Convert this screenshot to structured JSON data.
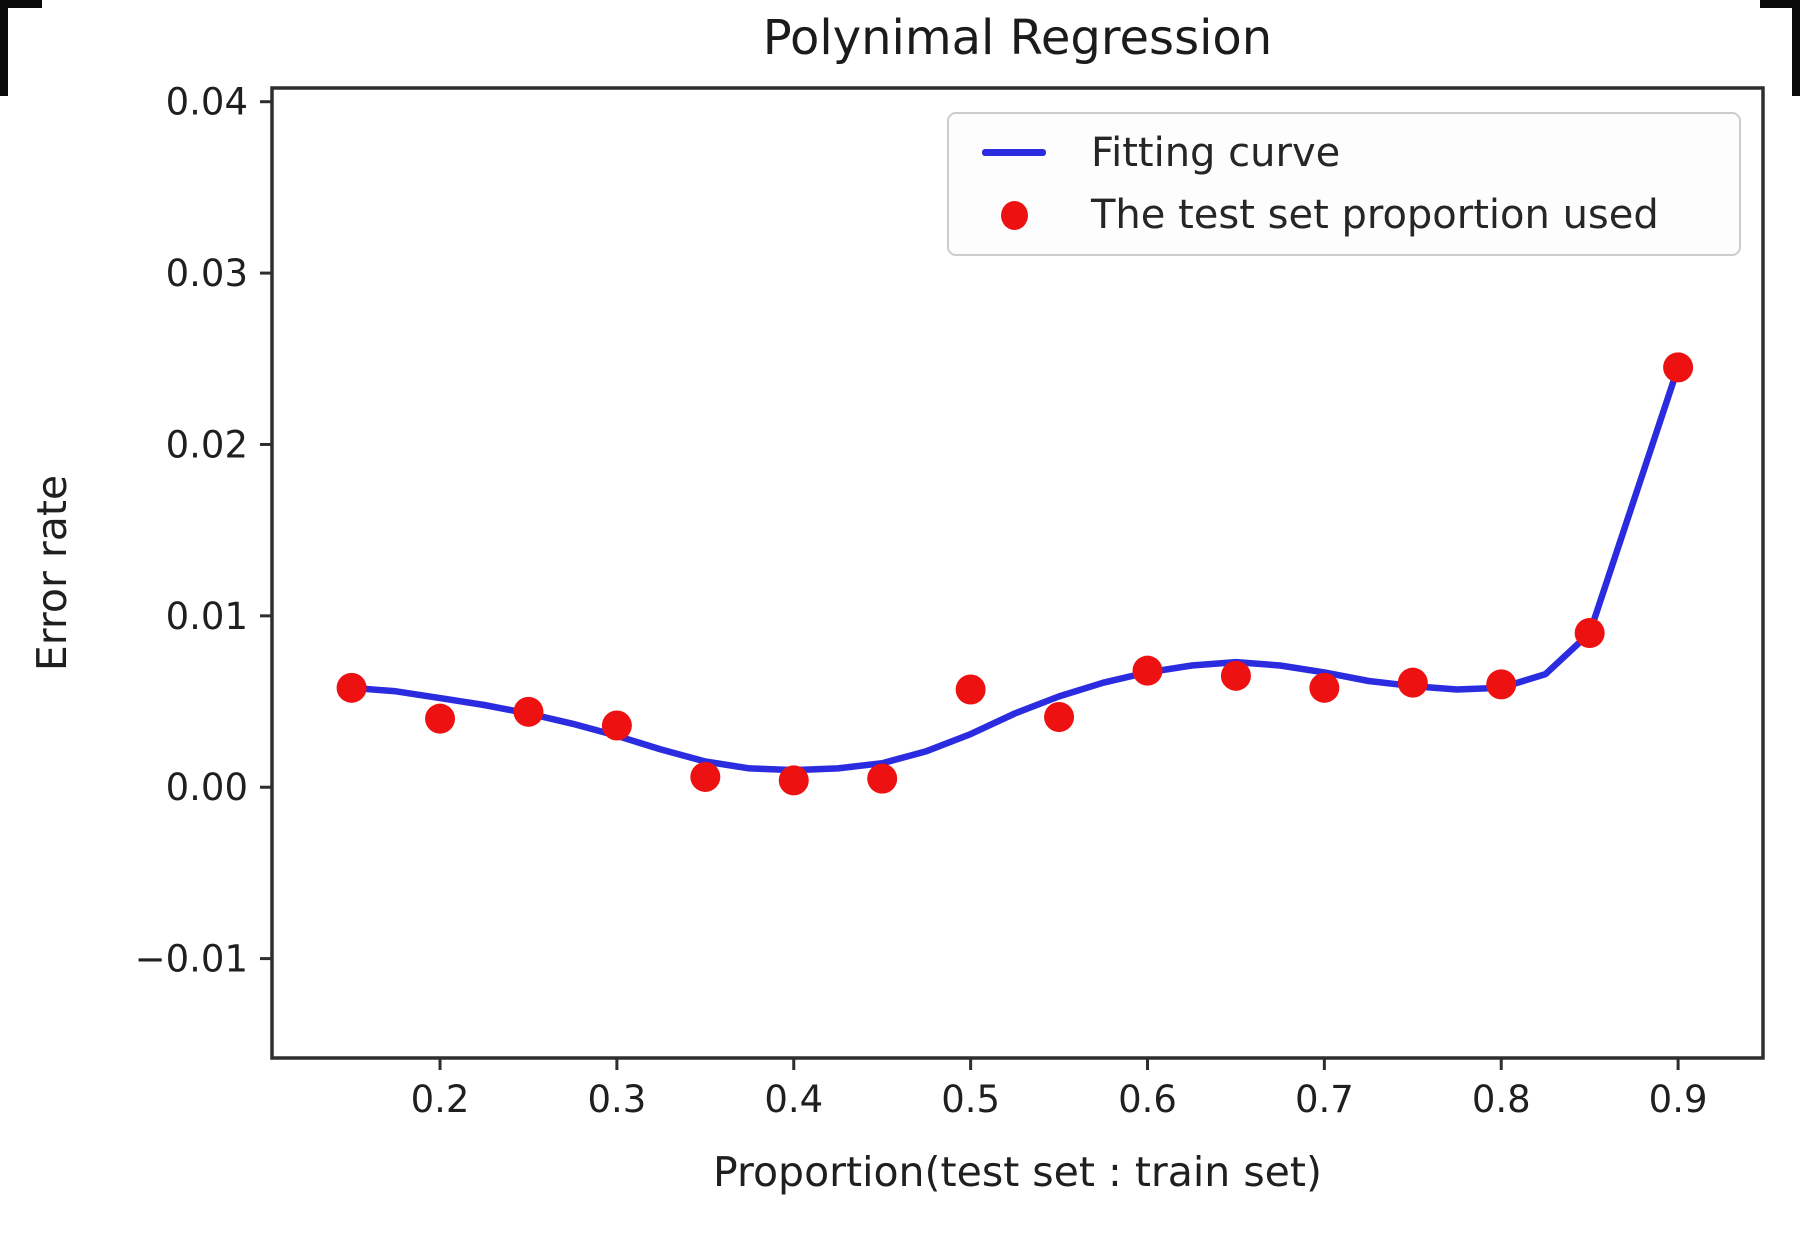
{
  "chart_data": {
    "type": "scatter",
    "title": "Polynimal Regression",
    "xlabel": "Proportion(test set : train set)",
    "ylabel": "Error rate",
    "xlim": [
      0.105,
      0.948
    ],
    "ylim": [
      -0.0158,
      0.0408
    ],
    "grid": false,
    "legend_position": "upper right",
    "x_ticks": [
      0.2,
      0.3,
      0.4,
      0.5,
      0.6,
      0.7,
      0.8,
      0.9
    ],
    "x_tick_labels": [
      "0.2",
      "0.3",
      "0.4",
      "0.5",
      "0.6",
      "0.7",
      "0.8",
      "0.9"
    ],
    "y_ticks": [
      0.04,
      0.03,
      0.02,
      0.01,
      0.0,
      -0.01
    ],
    "y_tick_labels": [
      "0.04",
      "0.03",
      "0.02",
      "0.01",
      "0.00",
      "−0.01"
    ],
    "legend": [
      {
        "label": "Fitting curve",
        "marker": "line",
        "color": "#2b2be0"
      },
      {
        "label": "The test set proportion used",
        "marker": "dot",
        "color": "#ee1111"
      }
    ],
    "series": [
      {
        "name": "Fitting curve",
        "type": "line",
        "color": "#2b2be0",
        "x": [
          0.15,
          0.175,
          0.2,
          0.225,
          0.25,
          0.275,
          0.3,
          0.325,
          0.35,
          0.375,
          0.4,
          0.425,
          0.45,
          0.475,
          0.5,
          0.525,
          0.55,
          0.575,
          0.6,
          0.625,
          0.65,
          0.675,
          0.7,
          0.725,
          0.75,
          0.775,
          0.8,
          0.825,
          0.85,
          0.9
        ],
        "y": [
          0.0058,
          0.0056,
          0.0052,
          0.0048,
          0.0043,
          0.0037,
          0.003,
          0.0022,
          0.0015,
          0.0011,
          0.001,
          0.0011,
          0.0014,
          0.0021,
          0.0031,
          0.0043,
          0.0053,
          0.0061,
          0.0067,
          0.0071,
          0.0073,
          0.0071,
          0.0067,
          0.0062,
          0.0059,
          0.0057,
          0.0058,
          0.0066,
          0.009,
          0.0245
        ]
      },
      {
        "name": "The test set proportion used",
        "type": "scatter",
        "color": "#ee1111",
        "x": [
          0.15,
          0.2,
          0.25,
          0.3,
          0.35,
          0.4,
          0.45,
          0.5,
          0.55,
          0.6,
          0.65,
          0.7,
          0.75,
          0.8,
          0.85,
          0.9
        ],
        "y": [
          0.0058,
          0.004,
          0.0044,
          0.0036,
          0.0006,
          0.0004,
          0.0005,
          0.0057,
          0.0041,
          0.0068,
          0.0065,
          0.0058,
          0.0061,
          0.006,
          0.009,
          0.0245
        ]
      }
    ]
  }
}
